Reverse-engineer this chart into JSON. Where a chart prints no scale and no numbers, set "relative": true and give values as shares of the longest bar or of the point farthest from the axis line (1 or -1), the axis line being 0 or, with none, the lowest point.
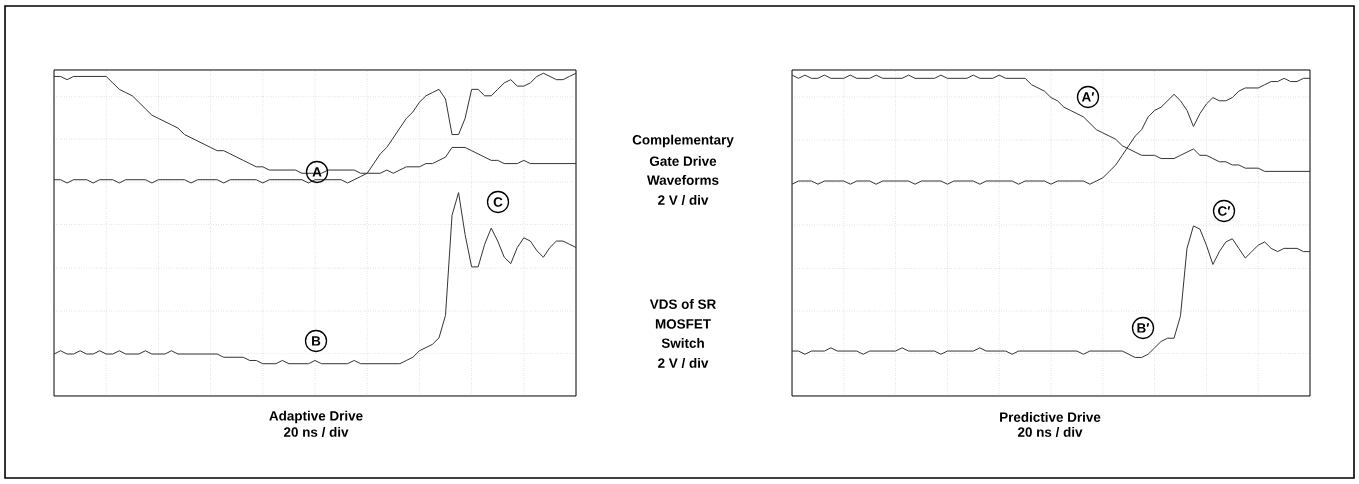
{
  "chart_data": [
    {
      "type": "line",
      "relative": true,
      "grid": true,
      "title": "Adaptive Drive",
      "xlabel": "20 ns / div",
      "categories": [
        null,
        null,
        null,
        null,
        null,
        null,
        null,
        null,
        null,
        null,
        null,
        null,
        null,
        null,
        null,
        null,
        null,
        null,
        null,
        null,
        null,
        null,
        null,
        null,
        null,
        null,
        null,
        null,
        null,
        null,
        null,
        null,
        null,
        null,
        null,
        null,
        null,
        null,
        null,
        null,
        null,
        null,
        null,
        null,
        null,
        null,
        null,
        null,
        null,
        null,
        null,
        null,
        null,
        null,
        null,
        null,
        null,
        null,
        null,
        null,
        null,
        null,
        null,
        null,
        null,
        null,
        null,
        null,
        null,
        null,
        null,
        null,
        null,
        null,
        null,
        null,
        null,
        null,
        null,
        null,
        null
      ],
      "series": [
        {
          "color": "#333333",
          "values": [
            0.99,
            0.99,
            0.98,
            0.99,
            0.99,
            0.99,
            0.99,
            0.99,
            0.99,
            0.97,
            0.95,
            0.94,
            0.93,
            0.91,
            0.89,
            0.87,
            0.86,
            0.85,
            0.84,
            0.83,
            0.81,
            0.8,
            0.79,
            0.78,
            0.77,
            0.76,
            0.76,
            0.75,
            0.74,
            0.73,
            0.72,
            0.71,
            0.71,
            0.7,
            0.7,
            0.7,
            0.7,
            0.7,
            0.69,
            0.69,
            0.69,
            0.69,
            0.7,
            0.7,
            0.7,
            0.7,
            0.7,
            0.69,
            0.69,
            0.69,
            0.69,
            0.7,
            0.69,
            0.7,
            0.71,
            0.71,
            0.71,
            0.72,
            0.72,
            0.73,
            0.74,
            0.77,
            0.77,
            0.77,
            0.76,
            0.75,
            0.74,
            0.73,
            0.73,
            0.72,
            0.72,
            0.72,
            0.73,
            0.72,
            0.72,
            0.72,
            0.72,
            0.72,
            0.72,
            0.72,
            0.72
          ]
        },
        {
          "color": "#333333",
          "values": [
            0.67,
            0.67,
            0.66,
            0.67,
            0.67,
            0.67,
            0.66,
            0.67,
            0.67,
            0.67,
            0.66,
            0.67,
            0.67,
            0.67,
            0.67,
            0.66,
            0.67,
            0.67,
            0.67,
            0.67,
            0.67,
            0.66,
            0.67,
            0.67,
            0.67,
            0.67,
            0.66,
            0.67,
            0.67,
            0.67,
            0.67,
            0.67,
            0.66,
            0.67,
            0.67,
            0.67,
            0.67,
            0.67,
            0.67,
            0.66,
            0.67,
            0.67,
            0.67,
            0.67,
            0.67,
            0.66,
            0.67,
            0.68,
            0.69,
            0.72,
            0.75,
            0.77,
            0.8,
            0.83,
            0.86,
            0.88,
            0.91,
            0.93,
            0.94,
            0.95,
            0.92,
            0.81,
            0.81,
            0.86,
            0.95,
            0.95,
            0.93,
            0.93,
            0.95,
            0.97,
            0.98,
            0.96,
            0.96,
            0.97,
            0.99,
            1.0,
            0.99,
            0.98,
            0.98,
            0.99,
            1.0
          ]
        },
        {
          "color": "#333333",
          "values": [
            0.13,
            0.14,
            0.13,
            0.13,
            0.14,
            0.13,
            0.13,
            0.14,
            0.13,
            0.13,
            0.14,
            0.13,
            0.13,
            0.13,
            0.14,
            0.13,
            0.13,
            0.13,
            0.14,
            0.13,
            0.13,
            0.13,
            0.13,
            0.13,
            0.13,
            0.13,
            0.12,
            0.12,
            0.12,
            0.12,
            0.11,
            0.11,
            0.1,
            0.1,
            0.1,
            0.11,
            0.1,
            0.1,
            0.1,
            0.1,
            0.11,
            0.1,
            0.1,
            0.1,
            0.1,
            0.1,
            0.11,
            0.1,
            0.1,
            0.1,
            0.1,
            0.1,
            0.1,
            0.1,
            0.11,
            0.12,
            0.14,
            0.15,
            0.16,
            0.18,
            0.25,
            0.56,
            0.63,
            0.5,
            0.4,
            0.4,
            0.47,
            0.52,
            0.48,
            0.43,
            0.41,
            0.46,
            0.49,
            0.48,
            0.45,
            0.43,
            0.46,
            0.48,
            0.48,
            0.47,
            0.46
          ]
        }
      ],
      "annotations": [
        "A",
        "B",
        "C",
        "Complementary",
        "Gate Drive",
        "Waveforms",
        "2 V / div",
        "VDS of SR",
        "MOSFET",
        "Switch",
        "2 V / div"
      ]
    },
    {
      "type": "line",
      "relative": true,
      "grid": true,
      "title": "Predictive Drive",
      "xlabel": "20 ns / div",
      "categories": [
        null,
        null,
        null,
        null,
        null,
        null,
        null,
        null,
        null,
        null,
        null,
        null,
        null,
        null,
        null,
        null,
        null,
        null,
        null,
        null,
        null,
        null,
        null,
        null,
        null,
        null,
        null,
        null,
        null,
        null,
        null,
        null,
        null,
        null,
        null,
        null,
        null,
        null,
        null,
        null,
        null,
        null,
        null,
        null,
        null,
        null,
        null,
        null,
        null,
        null,
        null,
        null,
        null,
        null,
        null,
        null,
        null,
        null,
        null,
        null,
        null,
        null,
        null,
        null,
        null,
        null,
        null,
        null,
        null,
        null,
        null,
        null,
        null,
        null,
        null,
        null,
        null,
        null,
        null,
        null,
        null
      ],
      "series": [
        {
          "color": "#333333",
          "values": [
            1.0,
            0.99,
            1.0,
            0.99,
            0.99,
            1.0,
            0.99,
            0.99,
            0.99,
            1.0,
            0.99,
            0.99,
            0.99,
            1.0,
            0.99,
            0.99,
            0.99,
            0.99,
            1.0,
            0.99,
            0.99,
            0.99,
            0.99,
            1.0,
            0.99,
            0.99,
            0.99,
            0.99,
            1.0,
            0.99,
            0.99,
            0.99,
            1.0,
            0.99,
            0.99,
            0.99,
            0.99,
            0.97,
            0.96,
            0.95,
            0.93,
            0.92,
            0.9,
            0.89,
            0.88,
            0.87,
            0.85,
            0.83,
            0.82,
            0.81,
            0.8,
            0.78,
            0.77,
            0.76,
            0.75,
            0.75,
            0.75,
            0.74,
            0.74,
            0.74,
            0.75,
            0.76,
            0.77,
            0.75,
            0.75,
            0.74,
            0.73,
            0.73,
            0.72,
            0.72,
            0.71,
            0.71,
            0.71,
            0.7,
            0.7,
            0.7,
            0.7,
            0.7,
            0.7,
            0.7,
            0.7
          ]
        },
        {
          "color": "#333333",
          "values": [
            0.66,
            0.67,
            0.67,
            0.67,
            0.66,
            0.67,
            0.67,
            0.67,
            0.67,
            0.66,
            0.67,
            0.67,
            0.67,
            0.66,
            0.67,
            0.67,
            0.67,
            0.67,
            0.67,
            0.66,
            0.67,
            0.67,
            0.67,
            0.67,
            0.66,
            0.67,
            0.67,
            0.67,
            0.67,
            0.66,
            0.67,
            0.67,
            0.67,
            0.67,
            0.67,
            0.66,
            0.67,
            0.67,
            0.67,
            0.67,
            0.66,
            0.67,
            0.67,
            0.67,
            0.67,
            0.67,
            0.66,
            0.67,
            0.68,
            0.7,
            0.72,
            0.75,
            0.78,
            0.81,
            0.83,
            0.87,
            0.89,
            0.9,
            0.92,
            0.94,
            0.92,
            0.89,
            0.84,
            0.88,
            0.91,
            0.93,
            0.92,
            0.92,
            0.93,
            0.95,
            0.96,
            0.96,
            0.96,
            0.97,
            0.98,
            0.98,
            0.99,
            0.98,
            0.98,
            0.99,
            0.99
          ]
        },
        {
          "color": "#333333",
          "values": [
            0.14,
            0.14,
            0.13,
            0.14,
            0.14,
            0.14,
            0.15,
            0.14,
            0.14,
            0.14,
            0.14,
            0.13,
            0.14,
            0.14,
            0.14,
            0.14,
            0.14,
            0.15,
            0.14,
            0.14,
            0.14,
            0.14,
            0.14,
            0.13,
            0.14,
            0.14,
            0.14,
            0.14,
            0.14,
            0.15,
            0.14,
            0.14,
            0.14,
            0.14,
            0.13,
            0.14,
            0.14,
            0.14,
            0.14,
            0.14,
            0.14,
            0.14,
            0.14,
            0.14,
            0.14,
            0.13,
            0.14,
            0.14,
            0.14,
            0.14,
            0.14,
            0.14,
            0.13,
            0.12,
            0.12,
            0.13,
            0.15,
            0.17,
            0.18,
            0.18,
            0.25,
            0.46,
            0.53,
            0.52,
            0.47,
            0.41,
            0.45,
            0.48,
            0.49,
            0.46,
            0.43,
            0.45,
            0.47,
            0.48,
            0.46,
            0.45,
            0.46,
            0.46,
            0.46,
            0.45,
            0.45
          ]
        }
      ],
      "annotations": [
        "A′",
        "B′",
        "C′"
      ]
    }
  ]
}
